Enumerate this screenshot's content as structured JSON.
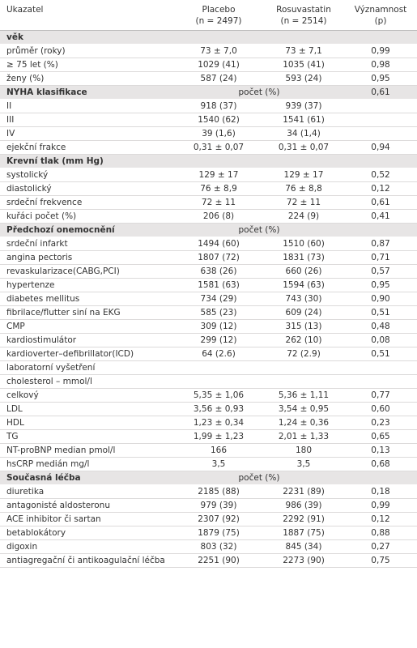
{
  "table": {
    "header": [
      [
        "Ukazatel"
      ],
      [
        "Placebo",
        "(n = 2497)"
      ],
      [
        "Rosuvastatin",
        "(n = 2514)"
      ],
      [
        "Významnost",
        "(p)"
      ]
    ],
    "rows": [
      {
        "section": "věk"
      },
      [
        "průměr (roky)",
        "73 ± 7,0",
        "73 ± 7,1",
        "0,99"
      ],
      [
        "≥ 75 let (%)",
        "1029 (41)",
        "1035 (41)",
        "0,98"
      ],
      [
        "ženy (%)",
        "587 (24)",
        "593 (24)",
        "0,95"
      ],
      {
        "section": "NYHA klasifikace",
        "note": "počet (%)",
        "p": "0,61"
      },
      [
        "II",
        "918 (37)",
        "939 (37)"
      ],
      [
        "III",
        "1540 (62)",
        "1541 (61)"
      ],
      [
        "IV",
        "39 (1,6)",
        "34 (1,4)"
      ],
      [
        "ejekční frakce",
        "0,31 ± 0,07",
        "0,31 ± 0,07",
        "0,94"
      ],
      {
        "section": "Krevní tlak (mm Hg)"
      },
      [
        "systolický",
        "129 ± 17",
        "129 ± 17",
        "0,52"
      ],
      [
        "diastolický",
        "76 ± 8,9",
        "76 ± 8,8",
        "0,12"
      ],
      [
        "srdeční frekvence",
        "72 ± 11",
        "72 ± 11",
        "0,61"
      ],
      [
        "kuřáci počet (%)",
        "206 (8)",
        "224 (9)",
        "0,41"
      ],
      {
        "section": "Předchozí onemocnění",
        "note": "počet (%)"
      },
      [
        "srdeční infarkt",
        "1494 (60)",
        "1510 (60)",
        "0,87"
      ],
      [
        "angina pectoris",
        "1807 (72)",
        "1831 (73)",
        "0,71"
      ],
      [
        "revaskularizace(CABG,PCI)",
        "638 (26)",
        "660 (26)",
        "0,57"
      ],
      [
        "hypertenze",
        "1581 (63)",
        "1594 (63)",
        "0,95"
      ],
      [
        "diabetes mellitus",
        "734 (29)",
        "743 (30)",
        "0,90"
      ],
      [
        "fibrilace/flutter siní na EKG",
        "585 (23)",
        "609 (24)",
        "0,51"
      ],
      [
        "CMP",
        "309 (12)",
        "315 (13)",
        "0,48"
      ],
      [
        "kardiostimulátor",
        "299 (12)",
        "262 (10)",
        "0,08"
      ],
      [
        "kardioverter–defibrillator(ICD)",
        "64 (2.6)",
        "72 (2.9)",
        "0,51"
      ],
      [
        "laboratorní vyšetření"
      ],
      [
        "cholesterol – mmol/l"
      ],
      [
        "celkový",
        "5,35 ± 1,06",
        "5,36 ± 1,11",
        "0,77"
      ],
      [
        "LDL",
        "3,56 ± 0,93",
        "3,54 ± 0,95",
        "0,60"
      ],
      [
        "HDL",
        "1,23 ± 0,34",
        "1,24 ± 0,36",
        "0,23"
      ],
      [
        "TG",
        "1,99 ± 1,23",
        "2,01 ± 1,33",
        "0,65"
      ],
      [
        "NT-proBNP median pmol/l",
        "166",
        "180",
        "0,13"
      ],
      [
        "hsCRP medián mg/l",
        "3,5",
        "3,5",
        "0,68"
      ],
      {
        "section": "Současná léčba",
        "note": "počet (%)"
      },
      [
        "diuretika",
        "2185 (88)",
        "2231 (89)",
        "0,18"
      ],
      [
        "antagonisté aldosteronu",
        "979 (39)",
        "986 (39)",
        "0,99"
      ],
      [
        "ACE inhibitor či sartan",
        "2307 (92)",
        "2292 (91)",
        "0,12"
      ],
      [
        "betablokátory",
        "1879 (75)",
        "1887 (75)",
        "0,88"
      ],
      [
        "digoxin",
        "803 (32)",
        "845 (34)",
        "0,27"
      ],
      [
        "antiagregační či antikoagulační léčba",
        "2251 (90)",
        "2273 (90)",
        "0,75"
      ]
    ]
  }
}
